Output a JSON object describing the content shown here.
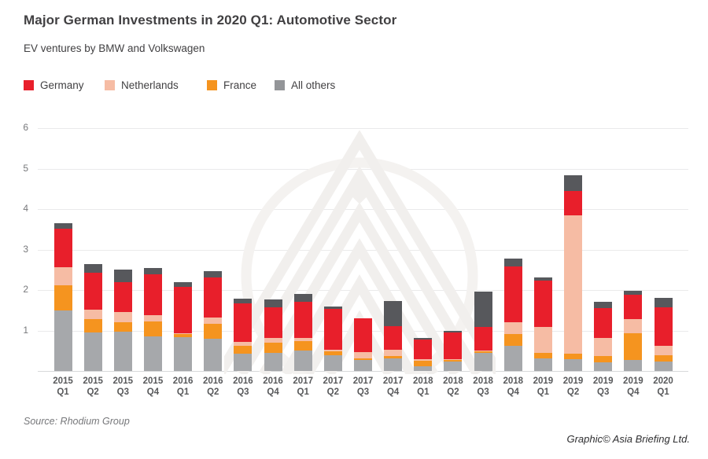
{
  "header": {
    "title": "Major German Investments in 2020 Q1: Automotive Sector",
    "subtitle": "EV ventures by BMW and Volkswagen"
  },
  "legend": {
    "items": [
      {
        "label": "Germany",
        "color": "#E81F2B"
      },
      {
        "label": "Netherlands",
        "color": "#F6BCA4"
      },
      {
        "label": "France",
        "color": "#F5941F"
      },
      {
        "label": "All others",
        "color": "#939598"
      }
    ]
  },
  "chart_data": {
    "type": "bar",
    "stacked": true,
    "title": "Major German Investments in 2020 Q1: Automotive Sector",
    "subtitle": "EV ventures by BMW and Volkswagen",
    "categories": [
      "2015 Q1",
      "2015 Q2",
      "2015 Q3",
      "2015 Q4",
      "2016 Q1",
      "2016 Q2",
      "2016 Q3",
      "2016 Q4",
      "2017 Q1",
      "2017 Q2",
      "2017 Q3",
      "2017 Q4",
      "2018 Q1",
      "2018 Q2",
      "2018 Q3",
      "2018 Q4",
      "2019 Q1",
      "2019 Q2",
      "2019 Q3",
      "2019 Q4",
      "2020 Q1"
    ],
    "series": [
      {
        "name": "All others (base segment)",
        "color": "#A6A8AB",
        "values": [
          1.5,
          0.95,
          0.98,
          0.86,
          0.83,
          0.8,
          0.43,
          0.45,
          0.5,
          0.39,
          0.27,
          0.31,
          0.12,
          0.23,
          0.44,
          0.63,
          0.32,
          0.29,
          0.21,
          0.27,
          0.24
        ]
      },
      {
        "name": "France",
        "color": "#F5941F",
        "values": [
          0.62,
          0.33,
          0.22,
          0.36,
          0.08,
          0.37,
          0.19,
          0.25,
          0.23,
          0.1,
          0.04,
          0.06,
          0.14,
          0.05,
          0.04,
          0.28,
          0.13,
          0.14,
          0.16,
          0.67,
          0.15
        ]
      },
      {
        "name": "Netherlands",
        "color": "#F6BCA4",
        "values": [
          0.44,
          0.23,
          0.25,
          0.16,
          0.02,
          0.15,
          0.1,
          0.11,
          0.08,
          0.03,
          0.15,
          0.15,
          0.03,
          0.02,
          0.02,
          0.29,
          0.63,
          3.41,
          0.45,
          0.35,
          0.23
        ]
      },
      {
        "name": "Germany",
        "color": "#E81F2B",
        "values": [
          0.96,
          0.92,
          0.74,
          1.0,
          1.15,
          1.0,
          0.95,
          0.76,
          0.89,
          1.02,
          0.84,
          0.59,
          0.48,
          0.65,
          0.58,
          1.39,
          1.15,
          0.6,
          0.73,
          0.59,
          0.95
        ]
      },
      {
        "name": "All others (top segment)",
        "color": "#57585C",
        "values": [
          0.13,
          0.21,
          0.32,
          0.17,
          0.11,
          0.15,
          0.12,
          0.2,
          0.21,
          0.05,
          0.0,
          0.62,
          0.05,
          0.05,
          0.88,
          0.19,
          0.08,
          0.39,
          0.15,
          0.11,
          0.24
        ]
      }
    ],
    "totals": [
      3.65,
      2.64,
      2.51,
      2.55,
      2.19,
      2.47,
      1.79,
      1.77,
      1.91,
      1.59,
      1.3,
      1.73,
      0.82,
      1.0,
      1.96,
      2.78,
      2.31,
      4.83,
      1.7,
      1.99,
      1.81
    ],
    "xlabel": "",
    "ylabel": "",
    "ylim": [
      0,
      6
    ],
    "yticks": [
      1,
      2,
      3,
      4,
      5,
      6
    ],
    "grid": true,
    "legend_position": "top-left"
  },
  "footer": {
    "source": "Source: Rhodium Group",
    "credit": "Graphic© Asia Briefing Ltd."
  },
  "colors": {
    "germany_red": "#E81F2B",
    "netherlands_salmon": "#F6BCA4",
    "france_orange": "#F5941F",
    "others_gray_light": "#A6A8AB",
    "others_gray_dark": "#57585C",
    "legend_gray": "#939598",
    "text_dark": "#414042",
    "axis_text": "#77787B",
    "gridline": "#EAEAEB",
    "watermark": "#F2F0EE"
  }
}
